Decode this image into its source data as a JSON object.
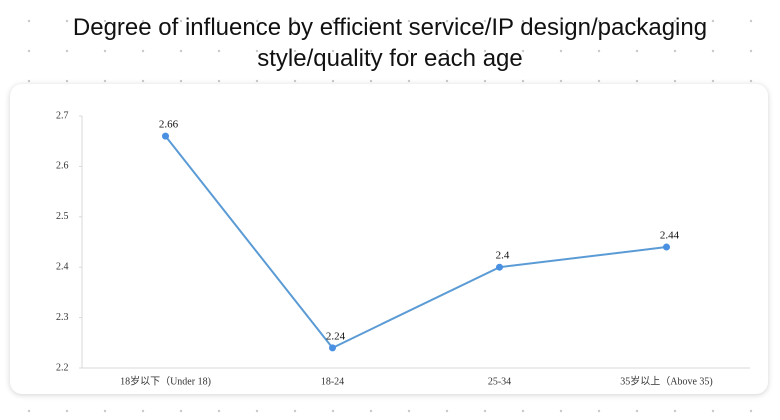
{
  "chart_data": {
    "type": "line",
    "title": "Degree of influence by efficient service/IP design/packaging style/quality for each age",
    "categories": [
      "18岁以下（Under 18)",
      "18-24",
      "25-34",
      "35岁以上（Above 35)"
    ],
    "values": [
      2.66,
      2.24,
      2.4,
      2.44
    ],
    "color": "#5b9bd5",
    "ylim": [
      2.2,
      2.7
    ],
    "yticks": [
      2.2,
      2.3,
      2.4,
      2.5,
      2.6,
      2.7
    ],
    "grid": false
  }
}
